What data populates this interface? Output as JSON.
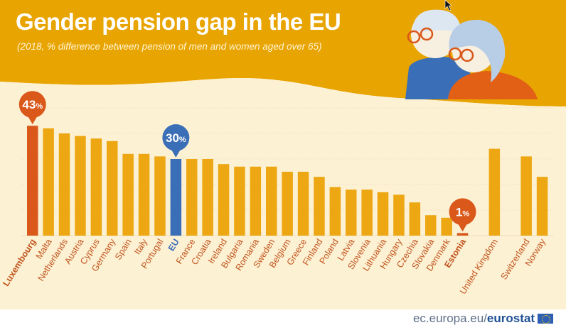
{
  "title": "Gender pension gap in the EU",
  "subtitle": "(2018, % difference between pension of men and women aged over 65)",
  "footer": {
    "source_plain": "ec.europa.eu/",
    "source_bold": "eurostat"
  },
  "colors": {
    "background": "#e8a400",
    "panel": "#fdf1d4",
    "bar": "#eda712",
    "lux": "#d9581a",
    "eu": "#3a6fb7",
    "est": "#d9581a",
    "label": "#c0541c"
  },
  "chart_data": {
    "type": "bar",
    "title": "Gender pension gap in the EU",
    "subtitle": "(2018, % difference between pension of men and women aged over 65)",
    "xlabel": "",
    "ylabel": "",
    "ylim": [
      0,
      45
    ],
    "grid": true,
    "categories": [
      "Luxembourg",
      "Malta",
      "Netherlands",
      "Austria",
      "Cyprus",
      "Germany",
      "Spain",
      "Italy",
      "Portugal",
      "EU",
      "France",
      "Croatia",
      "Ireland",
      "Bulgaria",
      "Romania",
      "Sweden",
      "Belgium",
      "Greece",
      "Finland",
      "Poland",
      "Latvia",
      "Slovenia",
      "Lithuania",
      "Hungary",
      "Czechia",
      "Slovakia",
      "Denmark",
      "Estonia",
      "",
      "United Kingdom",
      "",
      "Switzerland",
      "Norway"
    ],
    "values": [
      43,
      42,
      40,
      39,
      38,
      37,
      32,
      32,
      31,
      30,
      30,
      30,
      28,
      27,
      27,
      27,
      25,
      25,
      23,
      19,
      18,
      18,
      17,
      16,
      13,
      8,
      7,
      1,
      null,
      34,
      null,
      31,
      23
    ],
    "highlights": [
      {
        "category": "Luxembourg",
        "label": "43%",
        "number": "43",
        "unit": "%",
        "color": "#d9581a"
      },
      {
        "category": "EU",
        "label": "30%",
        "number": "30",
        "unit": "%",
        "color": "#3a6fb7"
      },
      {
        "category": "Estonia",
        "label": "1%",
        "number": "1",
        "unit": "%",
        "color": "#d9581a"
      }
    ]
  }
}
